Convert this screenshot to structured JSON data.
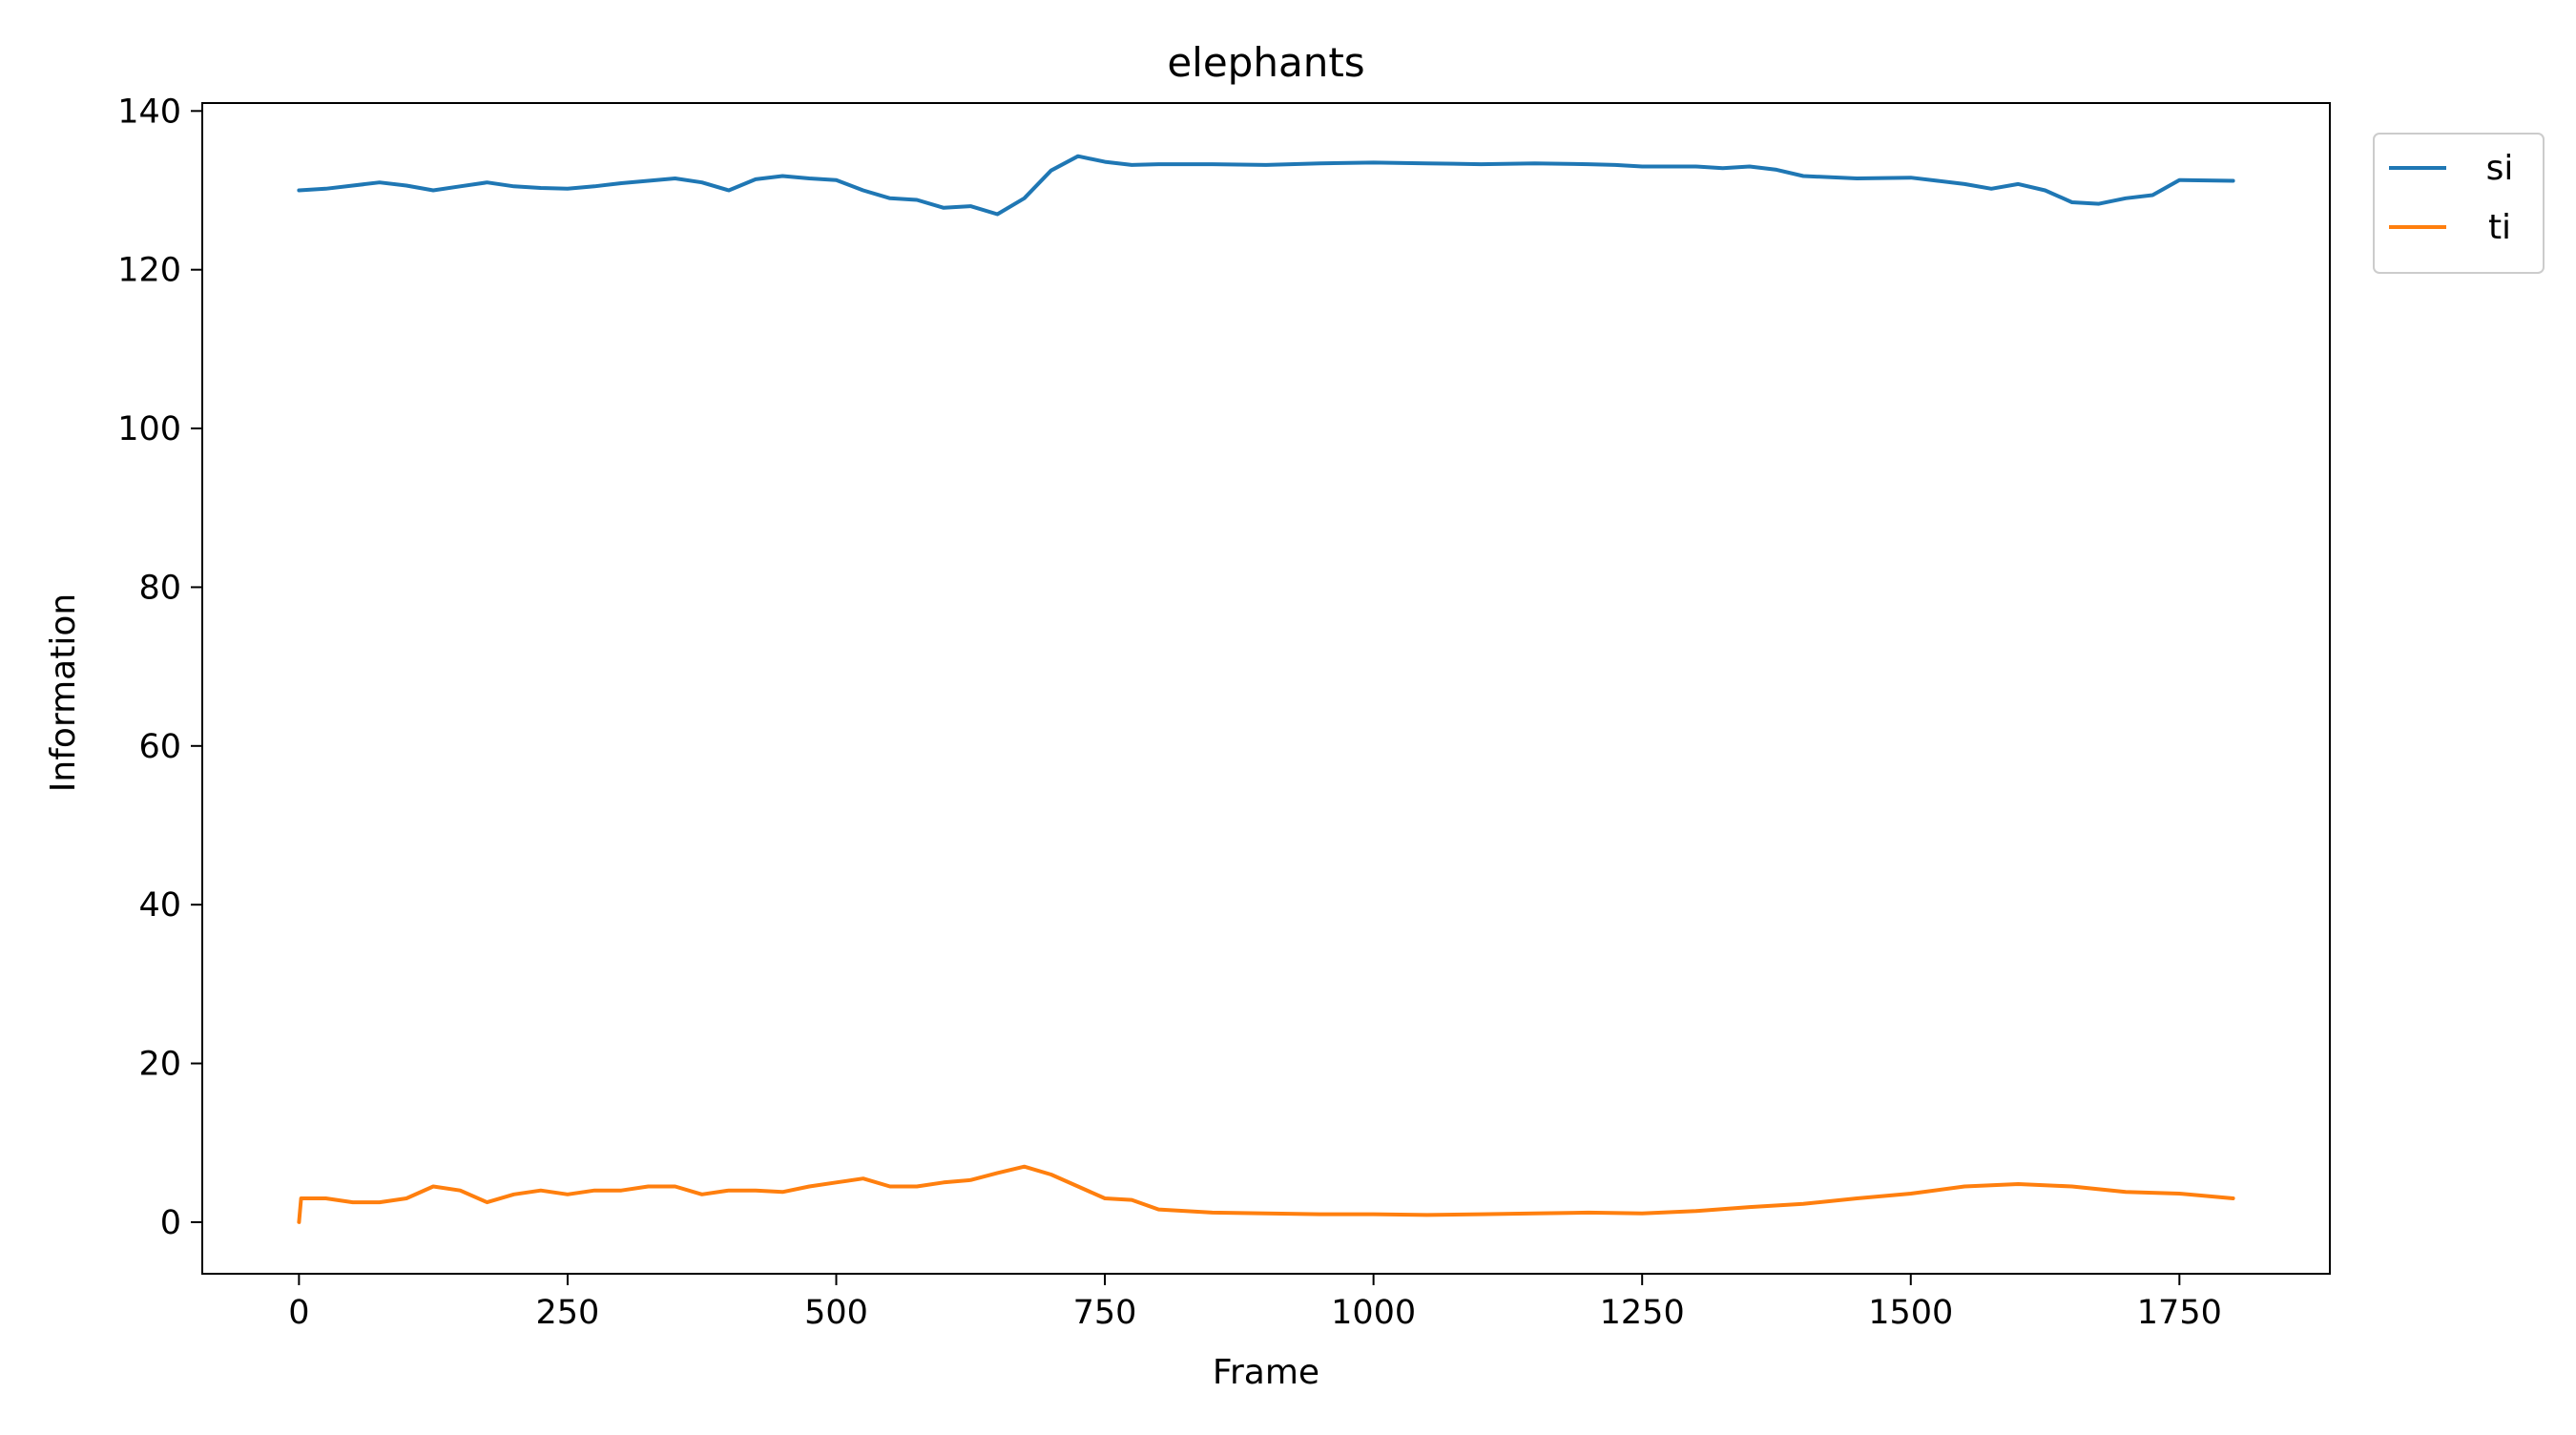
{
  "chart_data": {
    "type": "line",
    "title": "elephants",
    "xlabel": "Frame",
    "ylabel": "Information",
    "xlim": [
      -90,
      1890
    ],
    "ylim": [
      -6.5,
      141
    ],
    "xticks": [
      0,
      250,
      500,
      750,
      1000,
      1250,
      1500,
      1750
    ],
    "yticks": [
      0,
      20,
      40,
      60,
      80,
      100,
      120,
      140
    ],
    "grid": false,
    "legend_position": "outside-top-right",
    "series": [
      {
        "name": "si",
        "color": "#1f77b4",
        "x": [
          0,
          25,
          50,
          75,
          100,
          125,
          150,
          175,
          200,
          225,
          250,
          275,
          300,
          325,
          350,
          375,
          400,
          425,
          450,
          475,
          500,
          525,
          550,
          575,
          600,
          625,
          650,
          675,
          700,
          725,
          750,
          775,
          800,
          850,
          900,
          950,
          1000,
          1050,
          1100,
          1150,
          1200,
          1225,
          1250,
          1300,
          1325,
          1350,
          1375,
          1400,
          1450,
          1500,
          1525,
          1550,
          1575,
          1600,
          1625,
          1650,
          1675,
          1700,
          1725,
          1750,
          1800
        ],
        "y": [
          130,
          130.2,
          130.6,
          131,
          130.6,
          130,
          130.5,
          131,
          130.5,
          130.3,
          130.2,
          130.5,
          130.9,
          131.2,
          131.5,
          131,
          130,
          131.4,
          131.8,
          131.5,
          131.3,
          130,
          129,
          128.8,
          127.8,
          128,
          127,
          129,
          132.5,
          134.3,
          133.6,
          133.2,
          133.3,
          133.3,
          133.2,
          133.4,
          133.5,
          133.4,
          133.3,
          133.4,
          133.3,
          133.2,
          133,
          133,
          132.8,
          133,
          132.6,
          131.8,
          131.5,
          131.6,
          131.2,
          130.8,
          130.2,
          130.8,
          130,
          128.5,
          128.3,
          129,
          129.4,
          131.3,
          131.2
        ]
      },
      {
        "name": "ti",
        "color": "#ff7f0e",
        "x": [
          0,
          2,
          25,
          50,
          75,
          100,
          125,
          150,
          175,
          200,
          225,
          250,
          275,
          300,
          325,
          350,
          375,
          400,
          425,
          450,
          475,
          500,
          525,
          550,
          575,
          600,
          625,
          650,
          675,
          700,
          725,
          750,
          775,
          800,
          850,
          900,
          950,
          1000,
          1050,
          1100,
          1150,
          1200,
          1250,
          1300,
          1350,
          1400,
          1450,
          1500,
          1550,
          1600,
          1650,
          1700,
          1750,
          1800
        ],
        "y": [
          0,
          3,
          3,
          2.5,
          2.5,
          3,
          4.5,
          4,
          2.5,
          3.5,
          4,
          3.5,
          4,
          4,
          4.5,
          4.5,
          3.5,
          4,
          4,
          3.8,
          4.5,
          5,
          5.5,
          4.5,
          4.5,
          5,
          5.3,
          6.2,
          7,
          6,
          4.5,
          3,
          2.8,
          1.6,
          1.2,
          1.1,
          1,
          1,
          0.9,
          1,
          1.1,
          1.2,
          1.1,
          1.4,
          1.9,
          2.3,
          3,
          3.6,
          4.5,
          4.8,
          4.5,
          3.8,
          3.6,
          3
        ]
      }
    ]
  }
}
